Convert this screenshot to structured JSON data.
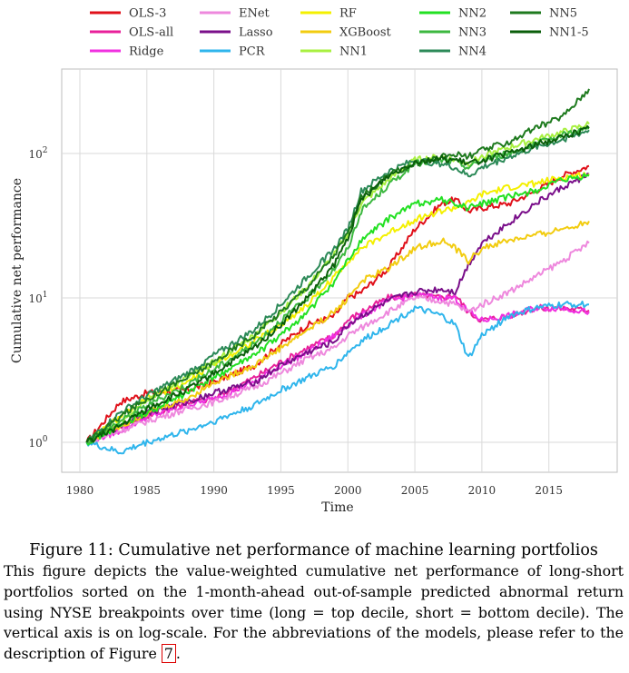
{
  "chart_data": {
    "type": "line",
    "xlabel": "Time",
    "ylabel": "Cumulative net performance",
    "yscale": "log",
    "xlim": [
      1980,
      2019
    ],
    "ylim": [
      0.75,
      380
    ],
    "grid": true,
    "legend_position": "top",
    "x_ticks": [
      1980,
      1985,
      1990,
      1995,
      2000,
      2005,
      2010,
      2015
    ],
    "y_ticks": [
      {
        "value": 1,
        "label_base": "10",
        "label_exp": "0"
      },
      {
        "value": 10,
        "label_base": "10",
        "label_exp": "1"
      },
      {
        "value": 100,
        "label_base": "10",
        "label_exp": "2"
      }
    ],
    "x": [
      1980.5,
      1983,
      1985,
      1988,
      1990,
      1993,
      1995,
      1997,
      1999,
      2000,
      2001,
      2003,
      2005,
      2007,
      2008,
      2009,
      2010,
      2012,
      2014,
      2016,
      2018
    ],
    "series": [
      {
        "name": "OLS-3",
        "color": "#e0101a",
        "values": [
          1.0,
          1.9,
          2.2,
          2.3,
          2.6,
          3.4,
          4.8,
          6.5,
          7.5,
          10,
          11,
          16,
          30,
          45,
          48,
          40,
          42,
          45,
          55,
          70,
          82
        ]
      },
      {
        "name": "OLS-all",
        "color": "#e8209a",
        "values": [
          1.0,
          1.3,
          1.5,
          1.9,
          2.0,
          2.8,
          3.6,
          4.5,
          5.5,
          7,
          8,
          10,
          10.5,
          10,
          10.5,
          8,
          7,
          7.5,
          8.5,
          8.5,
          8.2
        ]
      },
      {
        "name": "Ridge",
        "color": "#f030e0",
        "values": [
          1.0,
          1.2,
          1.5,
          1.8,
          2.0,
          2.6,
          3.4,
          4.2,
          5.5,
          6.5,
          7.5,
          9.5,
          10.5,
          10,
          10,
          8,
          7,
          7.5,
          8.5,
          8.5,
          8.0
        ]
      },
      {
        "name": "ENet",
        "color": "#ee88dd",
        "values": [
          1.0,
          1.2,
          1.4,
          1.7,
          1.9,
          2.4,
          3.0,
          3.8,
          4.5,
          5.5,
          6.2,
          8,
          10,
          9.5,
          9,
          8,
          9,
          11,
          14,
          18,
          24
        ]
      },
      {
        "name": "Lasso",
        "color": "#7a0f8a",
        "values": [
          1.0,
          1.3,
          1.6,
          1.9,
          2.2,
          2.6,
          3.4,
          4.2,
          5.0,
          6.5,
          7.5,
          9.5,
          11,
          11.5,
          11,
          17,
          24,
          33,
          45,
          58,
          72
        ]
      },
      {
        "name": "PCR",
        "color": "#2fb5ec",
        "values": [
          1.0,
          0.85,
          1.0,
          1.2,
          1.4,
          1.8,
          2.3,
          2.8,
          3.4,
          4.2,
          5.0,
          6.5,
          8.5,
          7.5,
          6.5,
          3.8,
          5.5,
          7.5,
          8.5,
          9.0,
          9.0
        ]
      },
      {
        "name": "RF",
        "color": "#f4f000",
        "values": [
          1.0,
          1.5,
          2.0,
          2.6,
          3.5,
          5.0,
          6.5,
          9,
          14,
          18,
          22,
          28,
          35,
          40,
          42,
          45,
          52,
          58,
          62,
          68,
          72
        ]
      },
      {
        "name": "XGBoost",
        "color": "#f2cc10",
        "values": [
          1.0,
          1.3,
          1.6,
          2.0,
          2.6,
          3.4,
          4.5,
          6.0,
          8,
          10,
          13,
          16,
          22,
          25,
          22,
          18,
          22,
          25,
          27,
          30,
          34
        ]
      },
      {
        "name": "NN1",
        "color": "#a8f040",
        "values": [
          1.0,
          1.4,
          2.0,
          2.8,
          3.6,
          5.5,
          8,
          12,
          20,
          28,
          45,
          65,
          90,
          95,
          90,
          85,
          95,
          110,
          125,
          140,
          160
        ]
      },
      {
        "name": "NN2",
        "color": "#22e022",
        "values": [
          1.0,
          1.3,
          1.6,
          2.2,
          2.8,
          4.0,
          5.5,
          8,
          13,
          18,
          25,
          35,
          45,
          48,
          45,
          42,
          45,
          50,
          55,
          65,
          70
        ]
      },
      {
        "name": "NN3",
        "color": "#3cb840",
        "values": [
          1.0,
          1.4,
          1.8,
          2.5,
          3.2,
          4.8,
          7,
          10,
          16,
          22,
          40,
          60,
          85,
          90,
          88,
          80,
          90,
          100,
          115,
          135,
          150
        ]
      },
      {
        "name": "NN4",
        "color": "#2c8a58",
        "values": [
          1.0,
          1.6,
          2.1,
          3.0,
          4.0,
          6.0,
          9,
          14,
          22,
          30,
          55,
          75,
          90,
          85,
          80,
          70,
          80,
          95,
          110,
          125,
          145
        ]
      },
      {
        "name": "NN5",
        "color": "#1e7a1e",
        "values": [
          1.0,
          1.5,
          2.0,
          2.8,
          3.6,
          5.5,
          8,
          12,
          20,
          28,
          50,
          70,
          85,
          95,
          100,
          95,
          105,
          120,
          150,
          180,
          280
        ]
      },
      {
        "name": "NN1-5",
        "color": "#0a5e0a",
        "values": [
          1.0,
          1.3,
          1.7,
          2.3,
          3.0,
          4.5,
          6.5,
          10,
          17,
          26,
          48,
          70,
          88,
          92,
          90,
          85,
          90,
          100,
          115,
          130,
          150
        ]
      }
    ]
  },
  "caption": {
    "title": "Figure 11: Cumulative net performance of machine learning portfolios",
    "body": "This figure depicts the value-weighted cumulative net performance of long-short portfolios sorted on the 1-month-ahead out-of-sample predicted abnormal return using NYSE breakpoints over time (long = top decile, short = bottom decile). The vertical axis is on log-scale. For the abbreviations of the models, please refer to the description of Figure ",
    "ref": "7",
    "end": "."
  }
}
